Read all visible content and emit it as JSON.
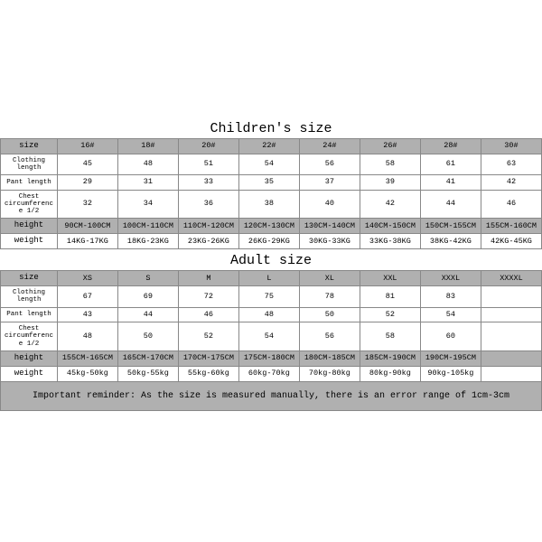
{
  "colors": {
    "header_bg": "#b0b0b0",
    "border": "#888888",
    "text": "#000000",
    "page_bg": "#ffffff"
  },
  "children": {
    "title": "Children's size",
    "row_labels": [
      "size",
      "Clothing length",
      "Pant length",
      "Chest circumference 1/2",
      "height",
      "weight"
    ],
    "columns": [
      "16#",
      "18#",
      "20#",
      "22#",
      "24#",
      "26#",
      "28#",
      "30#"
    ],
    "rows": {
      "clothing_length": [
        "45",
        "48",
        "51",
        "54",
        "56",
        "58",
        "61",
        "63"
      ],
      "pant_length": [
        "29",
        "31",
        "33",
        "35",
        "37",
        "39",
        "41",
        "42"
      ],
      "chest_half": [
        "32",
        "34",
        "36",
        "38",
        "40",
        "42",
        "44",
        "46"
      ],
      "height": [
        "90CM-100CM",
        "100CM-110CM",
        "110CM-120CM",
        "120CM-130CM",
        "130CM-140CM",
        "140CM-150CM",
        "150CM-155CM",
        "155CM-160CM"
      ],
      "weight": [
        "14KG-17KG",
        "18KG-23KG",
        "23KG-26KG",
        "26KG-29KG",
        "30KG-33KG",
        "33KG-38KG",
        "38KG-42KG",
        "42KG-45KG"
      ]
    }
  },
  "adult": {
    "title": "Adult size",
    "row_labels": [
      "size",
      "Clothing length",
      "Pant length",
      "Chest circumference 1/2",
      "height",
      "weight"
    ],
    "columns": [
      "XS",
      "S",
      "M",
      "L",
      "XL",
      "XXL",
      "XXXL",
      "XXXXL"
    ],
    "rows": {
      "clothing_length": [
        "67",
        "69",
        "72",
        "75",
        "78",
        "81",
        "83",
        ""
      ],
      "pant_length": [
        "43",
        "44",
        "46",
        "48",
        "50",
        "52",
        "54",
        ""
      ],
      "chest_half": [
        "48",
        "50",
        "52",
        "54",
        "56",
        "58",
        "60",
        ""
      ],
      "height": [
        "155CM-165CM",
        "165CM-170CM",
        "170CM-175CM",
        "175CM-180CM",
        "180CM-185CM",
        "185CM-190CM",
        "190CM-195CM",
        ""
      ],
      "weight": [
        "45kg-50kg",
        "50kg-55kg",
        "55kg-60kg",
        "60kg-70kg",
        "70kg-80kg",
        "80kg-90kg",
        "90kg-105kg",
        ""
      ]
    }
  },
  "reminder": "Important reminder: As the size is measured manually, there is an error range of 1cm-3cm"
}
